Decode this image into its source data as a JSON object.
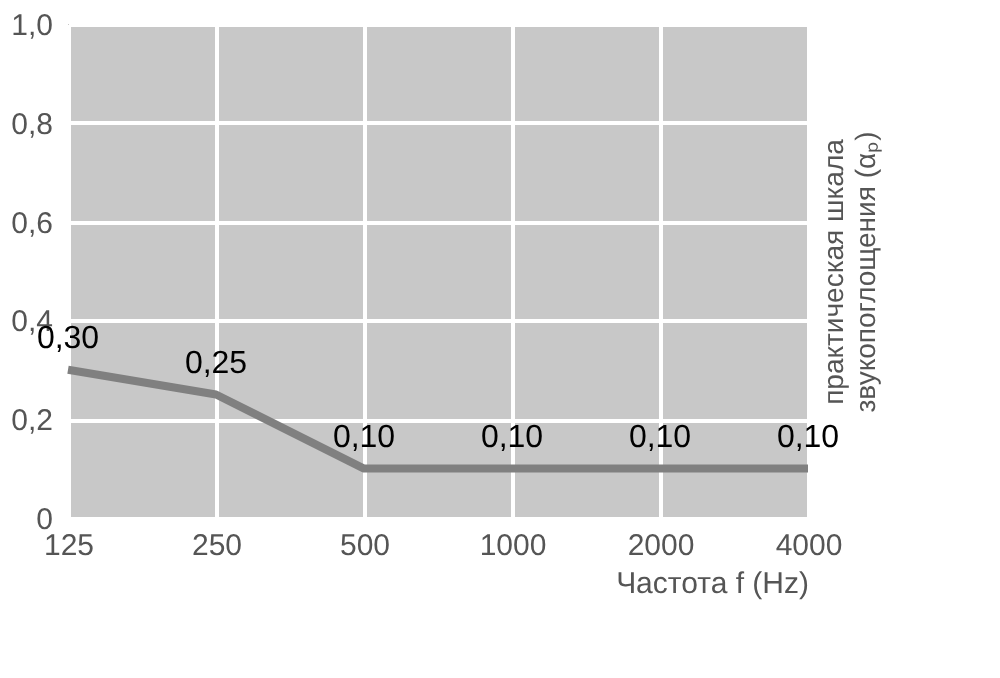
{
  "chart_data": {
    "type": "line",
    "xlabel": "Частота f (Hz)",
    "ylabel": "практическая шкала звукопоглощения (αₚ)",
    "categories": [
      "125",
      "250",
      "500",
      "1000",
      "2000",
      "4000"
    ],
    "series": [
      {
        "color": "#808080",
        "values": [
          0.3,
          0.25,
          0.1,
          0.1,
          0.1,
          0.1
        ],
        "value_labels": [
          "0,30",
          "0,25",
          "0,10",
          "0,10",
          "0,10",
          "0,10"
        ]
      }
    ],
    "ylim": [
      0,
      1
    ],
    "yticks": [
      {
        "value": 0,
        "label": "0"
      },
      {
        "value": 0.2,
        "label": "0,2"
      },
      {
        "value": 0.4,
        "label": "0,4"
      },
      {
        "value": 0.6,
        "label": "0,6"
      },
      {
        "value": 0.8,
        "label": "0,8"
      },
      {
        "value": 1,
        "label": "1,0"
      }
    ],
    "grid": true,
    "marker": "none",
    "line_style": "solid"
  }
}
